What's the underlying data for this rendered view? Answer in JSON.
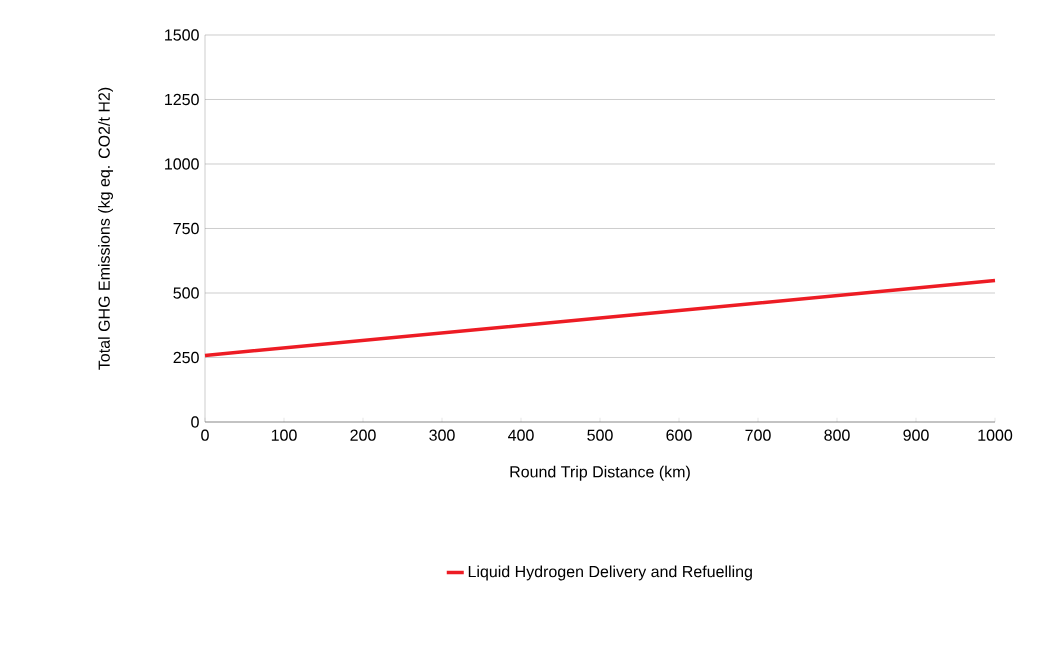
{
  "chart_data": {
    "type": "line",
    "xlabel": "Round Trip Distance (km)",
    "ylabel": "Total GHG Emissions (kg eq. CO2/t H2)",
    "x": [
      0,
      500,
      1000
    ],
    "series": [
      {
        "name": "Liquid Hydrogen Delivery and Refuelling",
        "color": "#ed1c24",
        "values": [
          258,
          403,
          548
        ]
      }
    ],
    "xlim": [
      0,
      1000
    ],
    "ylim": [
      0,
      1500
    ],
    "xticks": [
      0,
      100,
      200,
      300,
      400,
      500,
      600,
      700,
      800,
      900,
      1000
    ],
    "yticks": [
      0,
      250,
      500,
      750,
      1000,
      1250,
      1500
    ],
    "grid": "y",
    "legend": "bottom",
    "marker": "none",
    "line_style": "solid"
  }
}
